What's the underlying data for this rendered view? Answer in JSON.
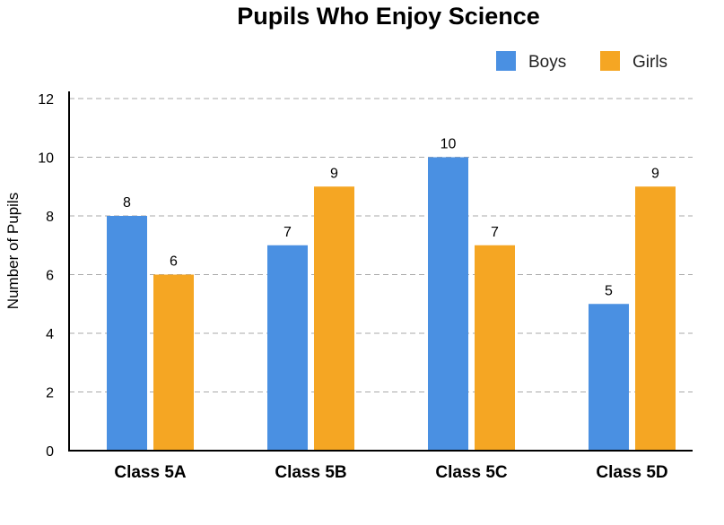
{
  "chart_data": {
    "type": "bar",
    "title": "Pupils Who Enjoy Science",
    "xlabel": "",
    "ylabel": "Number of Pupils",
    "categories": [
      "Class 5A",
      "Class 5B",
      "Class 5C",
      "Class 5D"
    ],
    "series": [
      {
        "name": "Boys",
        "color": "#4a90e2",
        "values": [
          8,
          7,
          10,
          5
        ]
      },
      {
        "name": "Girls",
        "color": "#f5a623",
        "values": [
          6,
          9,
          7,
          9
        ]
      }
    ],
    "ylim": [
      0,
      12
    ],
    "yticks": [
      "0",
      "2",
      "4",
      "6",
      "8",
      "10",
      "12"
    ],
    "grid": true,
    "legend_position": "top-right",
    "data_labels": true
  }
}
